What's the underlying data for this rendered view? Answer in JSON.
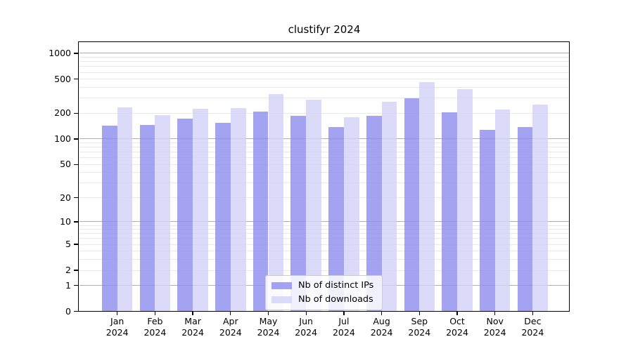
{
  "title": "clustifyr 2024",
  "chart_data": {
    "type": "bar",
    "title": "clustifyr 2024",
    "yscale": "log1p",
    "grid": true,
    "legend_position": "lower center",
    "categories": [
      "Jan",
      "Feb",
      "Mar",
      "Apr",
      "May",
      "Jun",
      "Jul",
      "Aug",
      "Sep",
      "Oct",
      "Nov",
      "Dec"
    ],
    "category_year": "2024",
    "series": [
      {
        "name": "Nb of distinct IPs",
        "color": "#8c8cee",
        "values": [
          142,
          146,
          172,
          156,
          210,
          188,
          139,
          186,
          297,
          207,
          129,
          137
        ]
      },
      {
        "name": "Nb of downloads",
        "color": "#d2d2f7",
        "values": [
          232,
          192,
          224,
          230,
          333,
          288,
          180,
          274,
          460,
          382,
          222,
          251
        ]
      }
    ],
    "yticks": [
      0,
      1,
      2,
      5,
      10,
      20,
      50,
      100,
      200,
      500,
      1000
    ],
    "major_gridlines": [
      1,
      10,
      100,
      1000
    ],
    "ylim": [
      0,
      1340
    ]
  },
  "colors": {
    "bar_alpha": 0.8,
    "grid_major": "#b0b0b0",
    "grid_minor": "#e8e8e8",
    "frame": "#000000",
    "legend_border": "#cccccc",
    "text": "#000000"
  }
}
